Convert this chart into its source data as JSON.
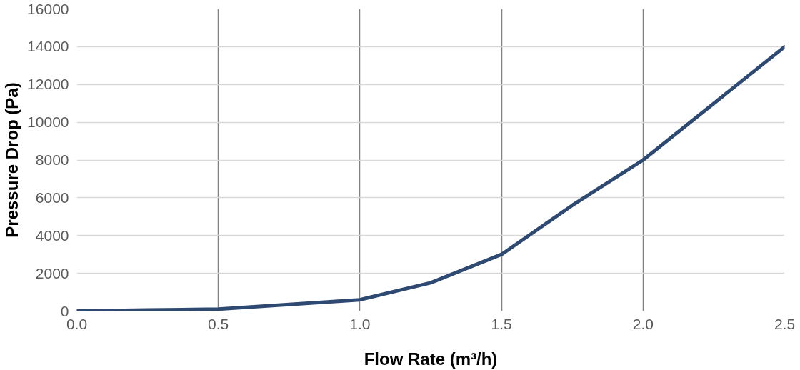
{
  "chart_data": {
    "type": "line",
    "xlabel": "Flow Rate (m³/h)",
    "ylabel": "Pressure Drop (Pa)",
    "x": [
      0,
      0.25,
      0.5,
      0.75,
      1.0,
      1.25,
      1.5,
      1.75,
      2.0,
      2.25,
      2.5
    ],
    "series": [
      {
        "color": "#2e4a72",
        "values": [
          0,
          60,
          100,
          350,
          600,
          1500,
          3000,
          5600,
          8000,
          11000,
          14000
        ]
      }
    ],
    "xlim": [
      0,
      2.5
    ],
    "xticks": [
      {
        "value": 0,
        "label": "0.0"
      },
      {
        "value": 0.5,
        "label": "0.5"
      },
      {
        "value": 1.0,
        "label": "1.0"
      },
      {
        "value": 1.5,
        "label": "1.5"
      },
      {
        "value": 2.0,
        "label": "2.0"
      },
      {
        "value": 2.5,
        "label": "2.5"
      }
    ],
    "ylim": [
      0,
      16000
    ],
    "yticks": [
      0,
      2000,
      4000,
      6000,
      8000,
      10000,
      12000,
      14000,
      16000
    ],
    "grid": true,
    "marker": "none",
    "line_style": "solid"
  }
}
